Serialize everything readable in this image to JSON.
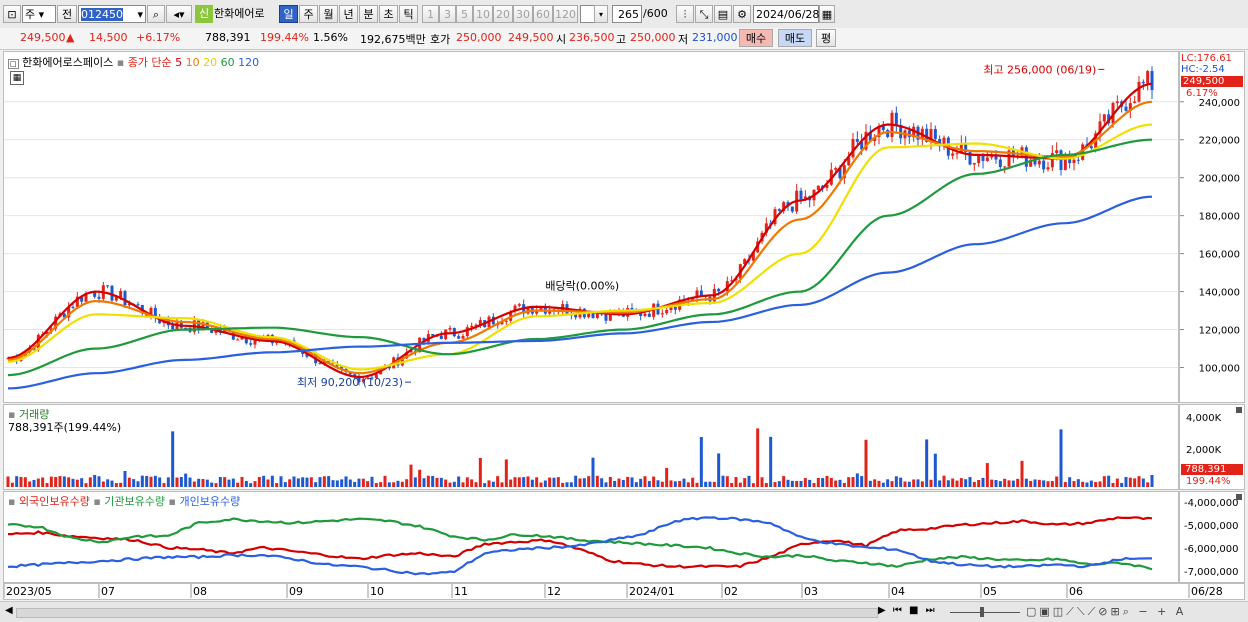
{
  "toolbar": {
    "period_sel": "주",
    "prev": "전",
    "code": "012450",
    "new_badge": "신",
    "name": "한화에어로",
    "periods": [
      "일",
      "주",
      "월",
      "년",
      "분",
      "초",
      "틱"
    ],
    "intervals": [
      "1",
      "3",
      "5",
      "10",
      "20",
      "30",
      "60",
      "120"
    ],
    "count": "265",
    "total": "/600",
    "date": "2024/06/28"
  },
  "info": {
    "price": "249,500",
    "change": "14,500",
    "rate": "+6.17%",
    "volume": "788,391",
    "vol_ratio": "199.44%",
    "turnover": "1.56%",
    "amount": "192,675백만",
    "ask_label": "호가",
    "ask": "250,000",
    "bid": "249,500",
    "open_label": "시",
    "open": "236,500",
    "high_label": "고",
    "high": "250,000",
    "low_label": "저",
    "low": "231,000",
    "buy": "매수",
    "sell": "매도",
    "avg": "평"
  },
  "price_panel": {
    "stock_name": "한화에어로스페이스",
    "ma_label": "종가 단순",
    "ma_periods": [
      "5",
      "10",
      "20",
      "60",
      "120"
    ],
    "ma_colors": [
      "#d40000",
      "#f07800",
      "#f0e000",
      "#1e9a3c",
      "#2a5fe0"
    ],
    "lc": "LC:176.61",
    "hc": "HC:-2.54",
    "price_tag": "249,500",
    "rate_tag": "6.17%",
    "high_note": "최고 256,000 (06/19)",
    "low_note": "최저 90,200 (10/23)",
    "div_note": "배당락(0.00%)",
    "yticks": [
      "240,000",
      "220,000",
      "200,000",
      "180,000",
      "160,000",
      "140,000",
      "120,000",
      "100,000"
    ]
  },
  "volume_panel": {
    "label": "거래량",
    "value": "788,391주(199.44%)",
    "yticks": [
      "4,000K",
      "2,000K"
    ],
    "tag1": "788,391",
    "tag2": "199.44%"
  },
  "holdings_panel": {
    "labels": [
      "외국인보유수량",
      "기관보유수량",
      "개인보유수량"
    ],
    "colors": [
      "#d40000",
      "#1e9a3c",
      "#2a5fe0"
    ],
    "yticks": [
      "-4,000,000",
      "-5,000,000",
      "-6,000,000",
      "-7,000,000"
    ]
  },
  "xaxis": {
    "labels": [
      "2023/05",
      "07",
      "08",
      "09",
      "10",
      "11",
      "12",
      "2024/01",
      "02",
      "03",
      "04",
      "05",
      "06",
      "06/28"
    ]
  },
  "chart_data": {
    "type": "candlestick",
    "title": "한화에어로스페이스",
    "x": [
      "2023/05",
      "07",
      "08",
      "09",
      "10",
      "11",
      "12",
      "2024/01",
      "02",
      "03",
      "04",
      "05",
      "06",
      "06/28"
    ],
    "series": [
      {
        "name": "5",
        "values": [
          105000,
          140000,
          122000,
          114000,
          95000,
          118000,
          132000,
          128000,
          138000,
          188000,
          228000,
          212000,
          210000,
          249500
        ]
      },
      {
        "name": "10",
        "values": [
          104000,
          135000,
          124000,
          115000,
          97000,
          113000,
          130000,
          129000,
          136000,
          178000,
          224000,
          214000,
          211000,
          240000
        ]
      },
      {
        "name": "20",
        "values": [
          103000,
          128000,
          126000,
          116000,
          99000,
          107000,
          127000,
          130000,
          134000,
          160000,
          216000,
          218000,
          210000,
          228000
        ]
      },
      {
        "name": "60",
        "values": [
          96000,
          110000,
          120000,
          121000,
          116000,
          107000,
          115000,
          120000,
          128000,
          140000,
          180000,
          202000,
          212000,
          220000
        ]
      },
      {
        "name": "120",
        "values": [
          89000,
          97000,
          104000,
          108000,
          111000,
          113000,
          114000,
          118000,
          124000,
          133000,
          150000,
          165000,
          176000,
          190000
        ]
      }
    ],
    "ylim": [
      85000,
      262000
    ],
    "high": {
      "value": 256000,
      "date": "06/19"
    },
    "low": {
      "value": 90200,
      "date": "10/23"
    },
    "last": 249500
  }
}
